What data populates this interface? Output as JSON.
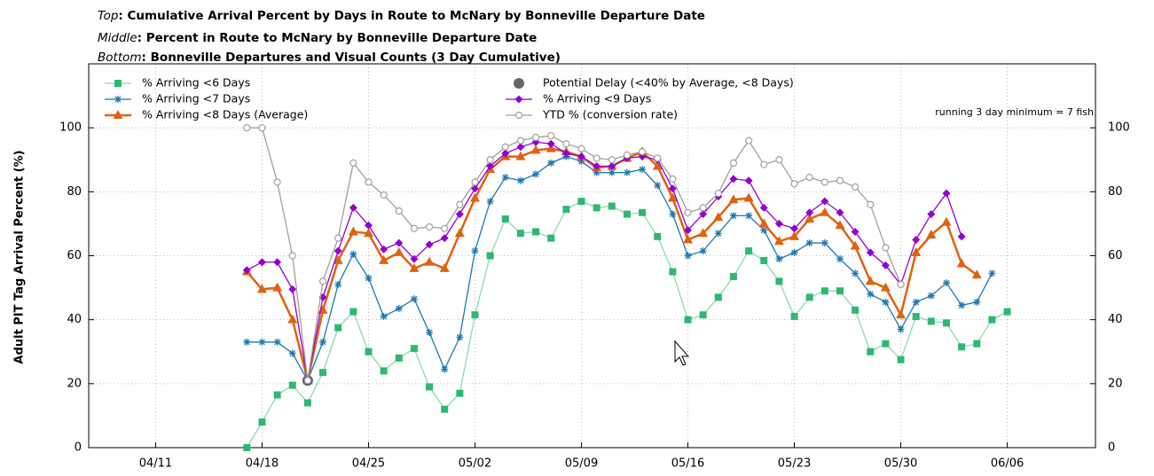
{
  "chart_data": {
    "type": "line",
    "subtitles": [
      {
        "prefix": "Top",
        "text": ": Cumulative Arrival Percent by Days in Route to McNary by Bonneville Departure Date"
      },
      {
        "prefix": "Middle",
        "text": ": Percent in Route to McNary by Bonneville Departure Date"
      },
      {
        "prefix": "Bottom",
        "text": ": Bonneville Departures and Visual Counts (3 Day Cumulative)"
      }
    ],
    "ylabel": "Adult PIT Tag Arrival Percent (%)",
    "annotation": "running 3 day minimum = 7 fish",
    "grid": true,
    "legend": "top",
    "xlim": [
      5.6,
      71.8
    ],
    "xticks": [
      {
        "value": 10,
        "label": "04/11"
      },
      {
        "value": 17,
        "label": "04/18"
      },
      {
        "value": 24,
        "label": "04/25"
      },
      {
        "value": 31,
        "label": "05/02"
      },
      {
        "value": 38,
        "label": "05/09"
      },
      {
        "value": 45,
        "label": "05/16"
      },
      {
        "value": 52,
        "label": "05/23"
      },
      {
        "value": 59,
        "label": "05/30"
      },
      {
        "value": 66,
        "label": "06/06"
      }
    ],
    "ylim": [
      0,
      120
    ],
    "yticks": [
      0,
      20,
      40,
      60,
      80,
      100
    ],
    "y2lim": [
      0,
      120
    ],
    "y2ticks": [
      0,
      20,
      40,
      60,
      80,
      100
    ],
    "x": [
      16,
      17,
      18,
      19,
      20,
      21,
      22,
      23,
      24,
      25,
      26,
      27,
      28,
      29,
      30,
      31,
      32,
      33,
      34,
      35,
      36,
      37,
      38,
      39,
      40,
      41,
      42,
      43,
      44,
      45,
      46,
      47,
      48,
      49,
      50,
      51,
      52,
      53,
      54,
      55,
      56,
      57,
      58,
      59,
      60,
      61,
      62,
      63,
      64,
      65,
      66
    ],
    "series": [
      {
        "name": "% Arriving <6 Days",
        "color": "#2eb872",
        "line_color": "#8fd9ae",
        "marker": "square",
        "line": true,
        "values": [
          0,
          8,
          16.5,
          19.5,
          14,
          23.5,
          37.5,
          42.5,
          30,
          24,
          28,
          31,
          19,
          12,
          17,
          41.5,
          60,
          71.5,
          67,
          67.5,
          65.5,
          74.5,
          77,
          75,
          75.5,
          73,
          73.5,
          66,
          55,
          40,
          41.5,
          47,
          53.5,
          61.5,
          58.5,
          52,
          41,
          47,
          49,
          49,
          43,
          30,
          32.5,
          27.5,
          41,
          39.5,
          39,
          31.5,
          32.5,
          40,
          42.5
        ]
      },
      {
        "name": "% Arriving <7 Days",
        "color": "#1f78b4",
        "line_color": "#1f78b4",
        "marker": "star",
        "line": true,
        "values": [
          33,
          33,
          33,
          29.5,
          21,
          33,
          51,
          60.5,
          53,
          41,
          43.5,
          46.5,
          36,
          24.5,
          34.5,
          61.5,
          77,
          84.5,
          83.5,
          85.5,
          89,
          91,
          89.5,
          86,
          86,
          86,
          87,
          82,
          73,
          60,
          61.5,
          67,
          72.5,
          72.5,
          68,
          59,
          61,
          64,
          64,
          59,
          54.5,
          48,
          45.5,
          37,
          45.5,
          47.5,
          51.5,
          44.5,
          45.5,
          54.5,
          null
        ]
      },
      {
        "name": "% Arriving <8 Days (Average)",
        "color": "#e0620f",
        "line_color": "#e0620f",
        "marker": "triangle",
        "line": true,
        "values": [
          55,
          49.5,
          50,
          40,
          21,
          43,
          58.5,
          67.5,
          67,
          58.5,
          61,
          56,
          58,
          56,
          67,
          78,
          87,
          91,
          91,
          93,
          93.5,
          92.5,
          91,
          87.5,
          88,
          90.5,
          92.5,
          88,
          78,
          65,
          67,
          72,
          77.5,
          78,
          70,
          64.5,
          66,
          71.5,
          73.5,
          69.5,
          63,
          52,
          50,
          41.5,
          61,
          66.5,
          70.5,
          57.5,
          54,
          null,
          null
        ]
      },
      {
        "name": "Potential Delay (<40% by Average, <8 Days)",
        "color": "#666666",
        "line_color": "#666666",
        "marker": "dot",
        "line": false,
        "values": [
          null,
          null,
          null,
          null,
          21,
          null,
          null,
          null,
          null,
          null,
          null,
          null,
          null,
          null,
          null,
          null,
          null,
          null,
          null,
          null,
          null,
          null,
          null,
          null,
          null,
          null,
          null,
          null,
          null,
          null,
          null,
          null,
          null,
          null,
          null,
          null,
          null,
          null,
          null,
          null,
          null,
          null,
          null,
          null,
          null,
          null,
          null,
          null,
          null,
          null,
          null
        ]
      },
      {
        "name": "% Arriving <9 Days",
        "color": "#9400d3",
        "line_color": "#9400d3",
        "marker": "diamond",
        "line": true,
        "values": [
          55.5,
          58,
          58,
          49.5,
          21,
          47,
          61.5,
          75,
          69.5,
          62,
          64,
          59,
          63.5,
          65.5,
          73,
          81,
          88,
          92,
          94,
          95.5,
          95,
          92,
          91,
          88,
          88,
          90.5,
          91,
          90,
          81,
          68,
          73,
          78.5,
          84,
          83.5,
          75,
          70,
          68.5,
          73.5,
          77,
          73.5,
          67.5,
          61,
          57,
          51,
          65,
          73,
          79.5,
          66,
          null,
          null,
          null
        ]
      },
      {
        "name": "YTD % (conversion rate)",
        "color": "#a0a0a0",
        "line_color": "#a0a0a0",
        "marker": "circle",
        "line": true,
        "values": [
          100,
          100,
          83,
          60,
          21,
          52,
          65.5,
          89,
          83,
          79,
          74,
          68.5,
          69,
          68.5,
          76,
          83,
          90,
          94,
          96,
          97,
          97.5,
          95,
          93.5,
          90.5,
          90,
          91.5,
          92.5,
          90.5,
          84,
          73.5,
          75,
          79.5,
          89,
          96,
          88.5,
          90,
          82.5,
          84.5,
          83,
          83.5,
          81.5,
          76,
          62.5,
          51,
          null,
          null,
          null,
          null,
          null,
          null,
          null
        ]
      }
    ]
  }
}
